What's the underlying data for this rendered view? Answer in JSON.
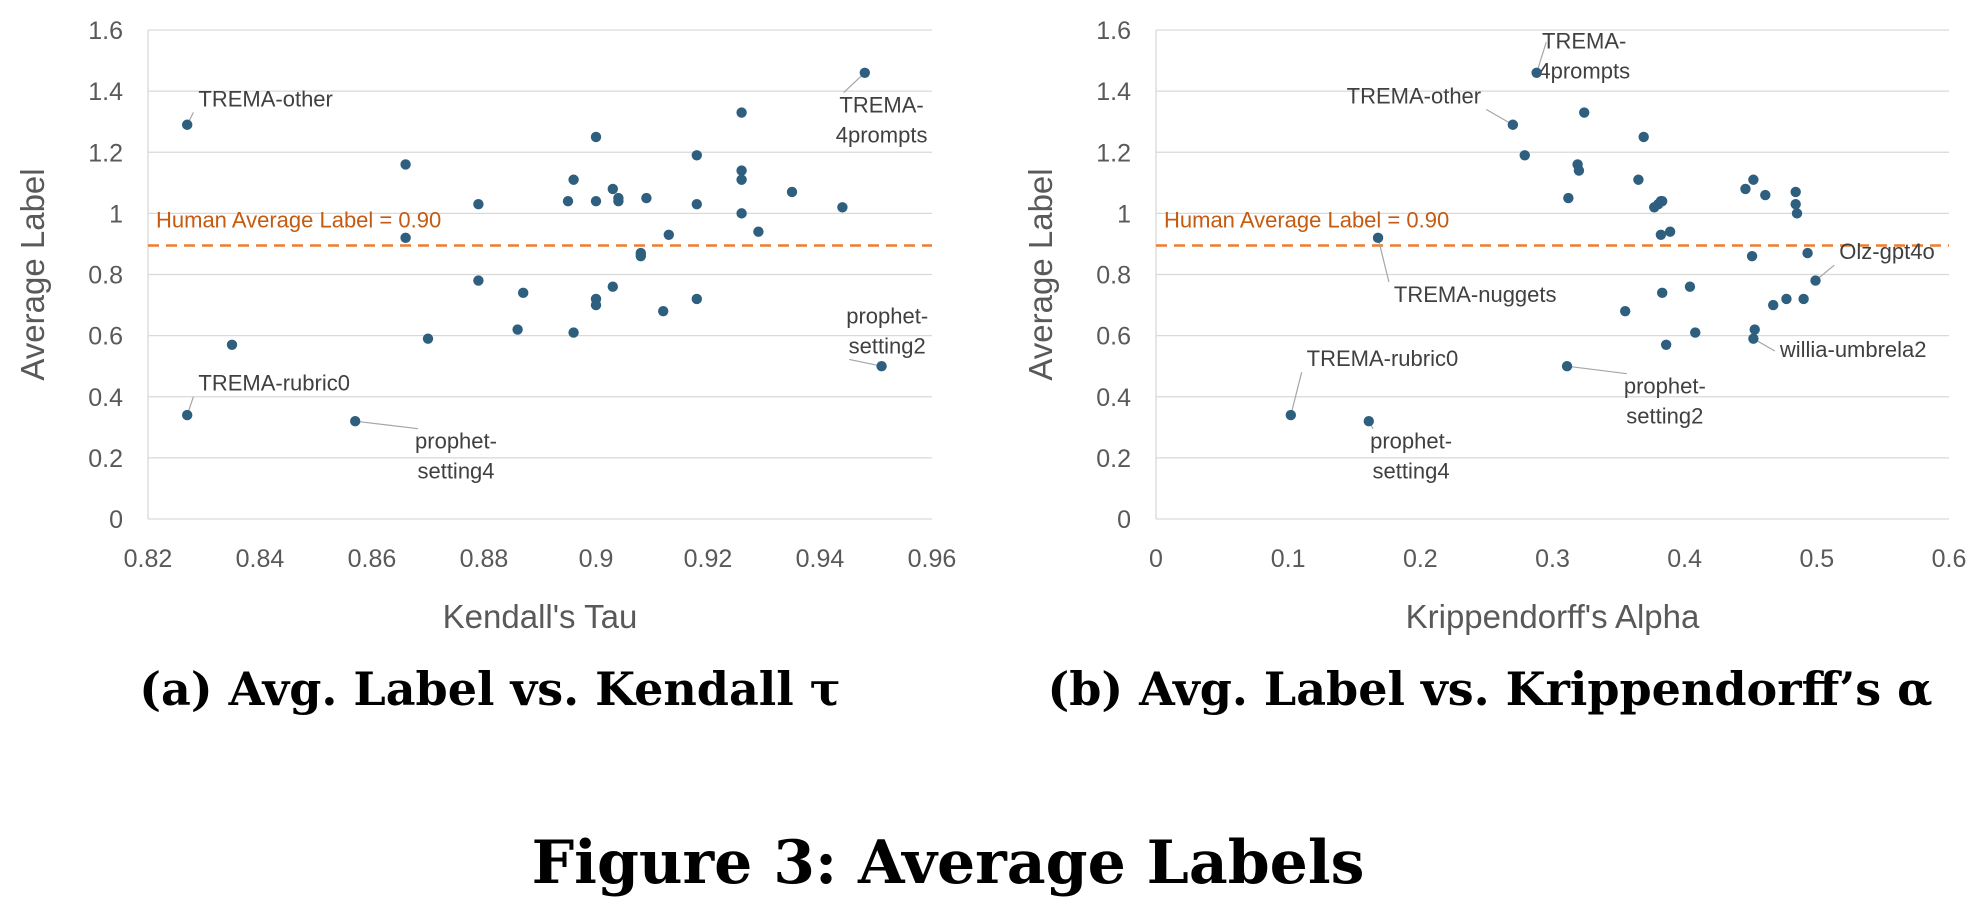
{
  "figure": {
    "title": "Figure 3: Average Labels",
    "colors": {
      "point": "#2e5f7f",
      "reference": "#ed7d31",
      "reference_text": "#c55a11",
      "grid": "#d9d9d9",
      "axis_text": "#595959"
    }
  },
  "chart_data": [
    {
      "type": "scatter",
      "caption": "(a) Avg. Label vs. Kendall τ",
      "xlabel": "Kendall's Tau",
      "ylabel": "Average Label",
      "xlim": [
        0.82,
        0.96
      ],
      "ylim": [
        0,
        1.6
      ],
      "xticks": [
        0.82,
        0.84,
        0.86,
        0.88,
        0.9,
        0.92,
        0.94,
        0.96
      ],
      "xtick_labels": [
        "0.82",
        "0.84",
        "0.86",
        "0.88",
        "0.9",
        "0.92",
        "0.94",
        "0.96"
      ],
      "yticks": [
        0,
        0.2,
        0.4,
        0.6,
        0.8,
        1,
        1.2,
        1.4,
        1.6
      ],
      "ytick_labels": [
        "0",
        "0.2",
        "0.4",
        "0.6",
        "0.8",
        "1",
        "1.2",
        "1.4",
        "1.6"
      ],
      "grid": true,
      "reference_line": {
        "y": 0.895,
        "label": "Human Average Label = 0.90"
      },
      "points": [
        {
          "x": 0.827,
          "y": 1.29
        },
        {
          "x": 0.827,
          "y": 0.34
        },
        {
          "x": 0.835,
          "y": 0.57
        },
        {
          "x": 0.857,
          "y": 0.32
        },
        {
          "x": 0.866,
          "y": 1.16
        },
        {
          "x": 0.866,
          "y": 0.92
        },
        {
          "x": 0.87,
          "y": 0.59
        },
        {
          "x": 0.879,
          "y": 1.03
        },
        {
          "x": 0.879,
          "y": 0.78
        },
        {
          "x": 0.886,
          "y": 0.62
        },
        {
          "x": 0.887,
          "y": 0.74
        },
        {
          "x": 0.895,
          "y": 1.04
        },
        {
          "x": 0.896,
          "y": 1.11
        },
        {
          "x": 0.896,
          "y": 0.61
        },
        {
          "x": 0.9,
          "y": 1.25
        },
        {
          "x": 0.9,
          "y": 1.04
        },
        {
          "x": 0.9,
          "y": 0.72
        },
        {
          "x": 0.9,
          "y": 0.7
        },
        {
          "x": 0.903,
          "y": 1.08
        },
        {
          "x": 0.903,
          "y": 0.76
        },
        {
          "x": 0.904,
          "y": 1.05
        },
        {
          "x": 0.904,
          "y": 1.04
        },
        {
          "x": 0.908,
          "y": 0.87
        },
        {
          "x": 0.908,
          "y": 0.86
        },
        {
          "x": 0.909,
          "y": 1.05
        },
        {
          "x": 0.912,
          "y": 0.68
        },
        {
          "x": 0.913,
          "y": 0.93
        },
        {
          "x": 0.918,
          "y": 1.19
        },
        {
          "x": 0.918,
          "y": 1.03
        },
        {
          "x": 0.918,
          "y": 0.72
        },
        {
          "x": 0.926,
          "y": 1.33
        },
        {
          "x": 0.926,
          "y": 1.14
        },
        {
          "x": 0.926,
          "y": 1.11
        },
        {
          "x": 0.926,
          "y": 1.0
        },
        {
          "x": 0.929,
          "y": 0.94
        },
        {
          "x": 0.935,
          "y": 1.07
        },
        {
          "x": 0.944,
          "y": 1.02
        },
        {
          "x": 0.948,
          "y": 1.46
        },
        {
          "x": 0.951,
          "y": 0.5
        }
      ],
      "annotations": [
        {
          "lines": [
            "TREMA-other"
          ],
          "at": [
            0.827,
            1.29
          ],
          "text_at": [
            0.829,
            1.35
          ],
          "anchor": "start"
        },
        {
          "lines": [
            "TREMA-rubric0"
          ],
          "at": [
            0.827,
            0.34
          ],
          "text_at": [
            0.829,
            0.42
          ],
          "anchor": "start"
        },
        {
          "lines": [
            "prophet-",
            "setting4"
          ],
          "at": [
            0.857,
            0.32
          ],
          "text_at": [
            0.875,
            0.23
          ],
          "anchor": "middle"
        },
        {
          "lines": [
            "TREMA-",
            "4prompts"
          ],
          "at": [
            0.948,
            1.46
          ],
          "text_at": [
            0.951,
            1.33
          ],
          "anchor": "middle"
        },
        {
          "lines": [
            "prophet-",
            "setting2"
          ],
          "at": [
            0.951,
            0.5
          ],
          "text_at": [
            0.952,
            0.64
          ],
          "anchor": "middle"
        }
      ]
    },
    {
      "type": "scatter",
      "caption": "(b) Avg. Label vs. Krippendorff’s α",
      "xlabel": "Krippendorff's Alpha",
      "ylabel": "Average Label",
      "xlim": [
        0,
        0.6
      ],
      "ylim": [
        0,
        1.6
      ],
      "xticks": [
        0,
        0.1,
        0.2,
        0.3,
        0.4,
        0.5,
        0.6
      ],
      "xtick_labels": [
        "0",
        "0.1",
        "0.2",
        "0.3",
        "0.4",
        "0.5",
        "0.6"
      ],
      "yticks": [
        0,
        0.2,
        0.4,
        0.6,
        0.8,
        1,
        1.2,
        1.4,
        1.6
      ],
      "ytick_labels": [
        "0",
        "0.2",
        "0.4",
        "0.6",
        "0.8",
        "1",
        "1.2",
        "1.4",
        "1.6"
      ],
      "grid": true,
      "reference_line": {
        "y": 0.895,
        "label": "Human Average Label = 0.90"
      },
      "points": [
        {
          "x": 0.102,
          "y": 0.34
        },
        {
          "x": 0.161,
          "y": 0.32
        },
        {
          "x": 0.168,
          "y": 0.92
        },
        {
          "x": 0.27,
          "y": 1.29
        },
        {
          "x": 0.279,
          "y": 1.19
        },
        {
          "x": 0.288,
          "y": 1.46
        },
        {
          "x": 0.311,
          "y": 0.5
        },
        {
          "x": 0.312,
          "y": 1.05
        },
        {
          "x": 0.319,
          "y": 1.16
        },
        {
          "x": 0.32,
          "y": 1.14
        },
        {
          "x": 0.324,
          "y": 1.33
        },
        {
          "x": 0.355,
          "y": 0.68
        },
        {
          "x": 0.365,
          "y": 1.11
        },
        {
          "x": 0.369,
          "y": 1.25
        },
        {
          "x": 0.377,
          "y": 1.02
        },
        {
          "x": 0.38,
          "y": 1.03
        },
        {
          "x": 0.382,
          "y": 1.04
        },
        {
          "x": 0.382,
          "y": 0.93
        },
        {
          "x": 0.383,
          "y": 1.04
        },
        {
          "x": 0.383,
          "y": 0.74
        },
        {
          "x": 0.386,
          "y": 0.57
        },
        {
          "x": 0.389,
          "y": 0.94
        },
        {
          "x": 0.404,
          "y": 0.76
        },
        {
          "x": 0.408,
          "y": 0.61
        },
        {
          "x": 0.446,
          "y": 1.08
        },
        {
          "x": 0.451,
          "y": 0.86
        },
        {
          "x": 0.452,
          "y": 1.11
        },
        {
          "x": 0.452,
          "y": 0.59
        },
        {
          "x": 0.453,
          "y": 0.62
        },
        {
          "x": 0.461,
          "y": 1.06
        },
        {
          "x": 0.467,
          "y": 0.7
        },
        {
          "x": 0.477,
          "y": 0.72
        },
        {
          "x": 0.484,
          "y": 1.07
        },
        {
          "x": 0.484,
          "y": 1.03
        },
        {
          "x": 0.485,
          "y": 1.0
        },
        {
          "x": 0.49,
          "y": 0.72
        },
        {
          "x": 0.493,
          "y": 0.87
        },
        {
          "x": 0.499,
          "y": 0.78
        }
      ],
      "annotations": [
        {
          "lines": [
            "TREMA-",
            "4prompts"
          ],
          "at": [
            0.288,
            1.46
          ],
          "text_at": [
            0.324,
            1.54
          ],
          "anchor": "middle"
        },
        {
          "lines": [
            "TREMA-other"
          ],
          "at": [
            0.27,
            1.29
          ],
          "text_at": [
            0.246,
            1.36
          ],
          "anchor": "end"
        },
        {
          "lines": [
            "TREMA-nuggets"
          ],
          "at": [
            0.168,
            0.92
          ],
          "text_at": [
            0.18,
            0.71
          ],
          "anchor": "start"
        },
        {
          "lines": [
            "TREMA-rubric0"
          ],
          "at": [
            0.102,
            0.34
          ],
          "text_at": [
            0.114,
            0.5
          ],
          "anchor": "start"
        },
        {
          "lines": [
            "prophet-",
            "setting4"
          ],
          "at": [
            0.161,
            0.32
          ],
          "text_at": [
            0.193,
            0.23
          ],
          "anchor": "middle"
        },
        {
          "lines": [
            "prophet-",
            "setting2"
          ],
          "at": [
            0.311,
            0.5
          ],
          "text_at": [
            0.385,
            0.41
          ],
          "anchor": "middle"
        },
        {
          "lines": [
            "Olz-gpt4o"
          ],
          "at": [
            0.499,
            0.78
          ],
          "text_at": [
            0.517,
            0.85
          ],
          "anchor": "start"
        },
        {
          "lines": [
            "willia-umbrela2"
          ],
          "at": [
            0.452,
            0.59
          ],
          "text_at": [
            0.472,
            0.53
          ],
          "anchor": "start"
        }
      ]
    }
  ]
}
